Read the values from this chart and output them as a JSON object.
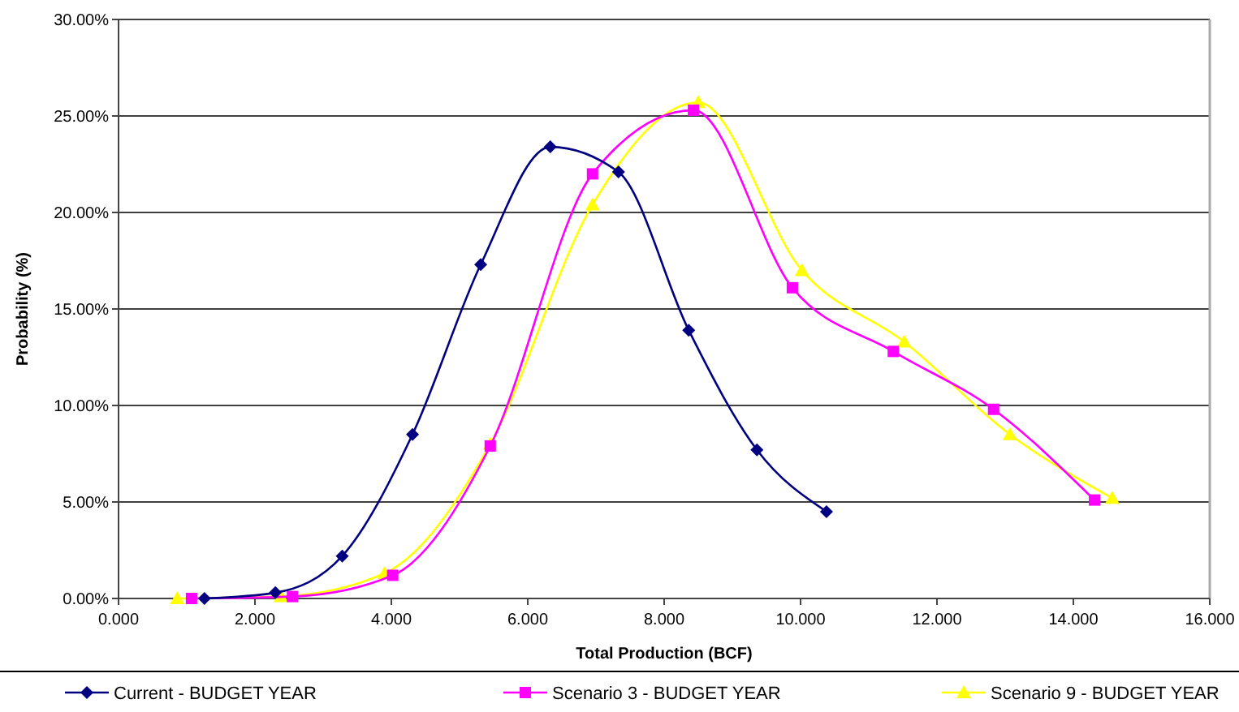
{
  "chart_data": {
    "type": "line",
    "xlabel": "Total Production (BCF)",
    "ylabel": "Probability (%)",
    "xlim": [
      0,
      16
    ],
    "xticks": [
      {
        "value": 0,
        "label": "0.000"
      },
      {
        "value": 2,
        "label": "2.000"
      },
      {
        "value": 4,
        "label": "4.000"
      },
      {
        "value": 6,
        "label": "6.000"
      },
      {
        "value": 8,
        "label": "8.000"
      },
      {
        "value": 10,
        "label": "10.000"
      },
      {
        "value": 12,
        "label": "12.000"
      },
      {
        "value": 14,
        "label": "14.000"
      },
      {
        "value": 16,
        "label": "16.000"
      }
    ],
    "ylim": [
      0,
      30
    ],
    "yticks": [
      {
        "value": 0,
        "label": "0.00%"
      },
      {
        "value": 5,
        "label": "5.00%"
      },
      {
        "value": 10,
        "label": "10.00%"
      },
      {
        "value": 15,
        "label": "15.00%"
      },
      {
        "value": 20,
        "label": "20.00%"
      },
      {
        "value": 25,
        "label": "25.00%"
      },
      {
        "value": 30,
        "label": "30.00%"
      }
    ],
    "grid": "y",
    "legend": "bottom",
    "series": [
      {
        "name": "Current - BUDGET YEAR",
        "color": "#000080",
        "marker": "diamond",
        "x": [
          1.26,
          2.3,
          3.28,
          4.31,
          5.31,
          6.33,
          7.33,
          8.36,
          9.36,
          10.38
        ],
        "values": [
          0,
          0.3,
          2.2,
          8.5,
          17.3,
          23.4,
          22.1,
          13.9,
          7.7,
          4.5
        ]
      },
      {
        "name": "Scenario 3 - BUDGET YEAR",
        "color": "#ff00ff",
        "marker": "square",
        "x": [
          1.07,
          2.55,
          4.02,
          5.45,
          6.95,
          8.43,
          9.88,
          11.36,
          12.83,
          14.31
        ],
        "values": [
          0,
          0.1,
          1.2,
          7.9,
          22.0,
          25.3,
          16.1,
          12.8,
          9.8,
          5.1
        ]
      },
      {
        "name": "Scenario 9 - BUDGET YEAR",
        "color": "#ffff00",
        "marker": "triangle",
        "x": [
          0.86,
          2.38,
          3.9,
          5.45,
          6.95,
          8.5,
          10.02,
          11.52,
          13.07,
          14.57
        ],
        "values": [
          0,
          0.1,
          1.3,
          8.0,
          20.4,
          25.7,
          17.0,
          13.3,
          8.5,
          5.2
        ]
      }
    ]
  }
}
